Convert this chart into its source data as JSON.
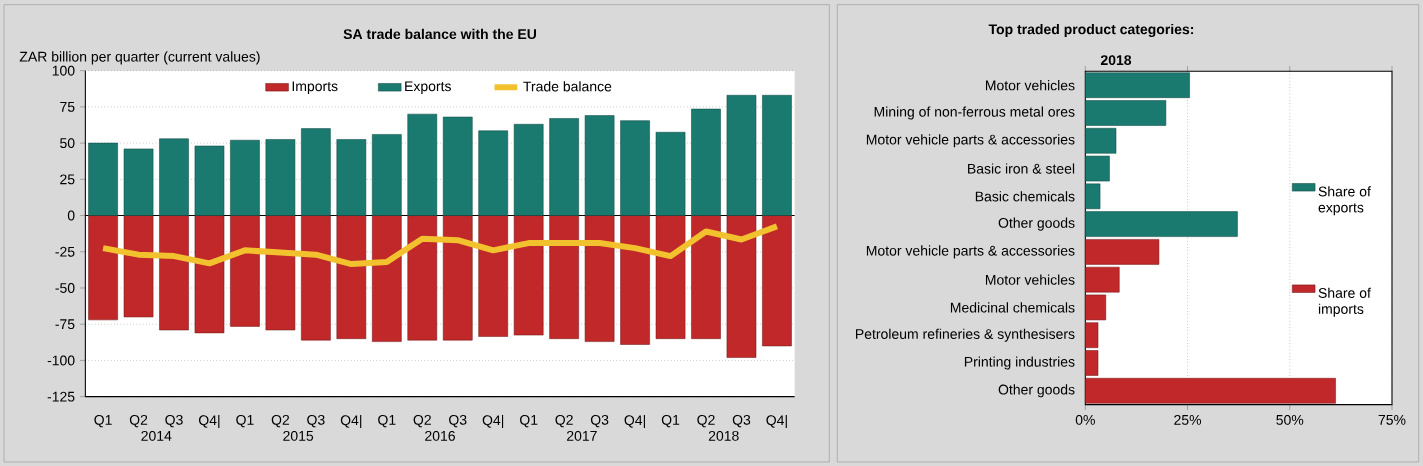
{
  "chart_data": [
    {
      "type": "bar",
      "title": "SA trade balance with the EU",
      "ylabel": "ZAR billion per quarter (current values)",
      "categories": [
        "Q1",
        "Q2",
        "Q3",
        "Q4|",
        "Q1",
        "Q2",
        "Q3",
        "Q4|",
        "Q1",
        "Q2",
        "Q3",
        "Q4|",
        "Q1",
        "Q2",
        "Q3",
        "Q4|",
        "Q1",
        "Q2",
        "Q3",
        "Q4|"
      ],
      "annotations": [
        "2014",
        "2015",
        "2016",
        "2017",
        "2018"
      ],
      "series": [
        {
          "name": "Imports",
          "color": "#c0282a",
          "values": [
            -72,
            -70,
            -79,
            -81,
            -76.5,
            -79,
            -86,
            -85,
            -87,
            -86,
            -86,
            -83.5,
            -82.5,
            -85,
            -87,
            -89,
            -85,
            -85,
            -98,
            -90
          ]
        },
        {
          "name": "Exports",
          "color": "#1b7a70",
          "values": [
            50,
            46,
            53,
            48,
            52,
            52.5,
            60,
            52.5,
            56,
            70,
            68,
            58.5,
            63,
            67,
            69,
            65.5,
            57.5,
            73.5,
            83,
            83
          ]
        },
        {
          "name": "Trade balance",
          "type": "line",
          "color": "#f2c12e",
          "values": [
            -22.5,
            -27,
            -28,
            -33,
            -24,
            -25.5,
            -27,
            -33.5,
            -32,
            -16,
            -17,
            -24,
            -19,
            -19,
            -19,
            -22.5,
            -28,
            -11,
            -16.5,
            -7.5
          ]
        }
      ],
      "stacked": true,
      "ylim": [
        -125,
        100
      ],
      "yticks": [
        -125,
        -100,
        -75,
        -50,
        -25,
        0,
        25,
        50,
        75,
        100
      ],
      "grid": "y",
      "legend": "top"
    },
    {
      "type": "bar",
      "orientation": "horizontal",
      "title": "Top traded product categories:",
      "subtitle": "2018",
      "categories": [
        "Motor vehicles",
        "Mining of non-ferrous metal ores",
        "Motor vehicle parts & accessories",
        "Basic iron & steel",
        "Basic chemicals",
        "Other goods",
        "Motor vehicle parts & accessories",
        "Motor vehicles",
        "Medicinal chemicals",
        "Petroleum refineries & synthesisers",
        "Printing industries",
        "Other goods"
      ],
      "series": [
        {
          "name": "Share of exports",
          "color": "#1b7a70",
          "values": [
            25.5,
            19.7,
            7.5,
            5.9,
            3.6,
            37.2,
            null,
            null,
            null,
            null,
            null,
            null
          ]
        },
        {
          "name": "Share of imports",
          "color": "#c0282a",
          "values": [
            null,
            null,
            null,
            null,
            null,
            null,
            18,
            8.3,
            5,
            3.1,
            3.1,
            61.2
          ]
        }
      ],
      "xlim": [
        0,
        75
      ],
      "xticks": [
        {
          "value": 0,
          "label": "0%"
        },
        {
          "value": 25,
          "label": "25%"
        },
        {
          "value": 50,
          "label": "50%"
        },
        {
          "value": 75,
          "label": "75%"
        }
      ],
      "grid": "x",
      "legend": "right"
    }
  ]
}
